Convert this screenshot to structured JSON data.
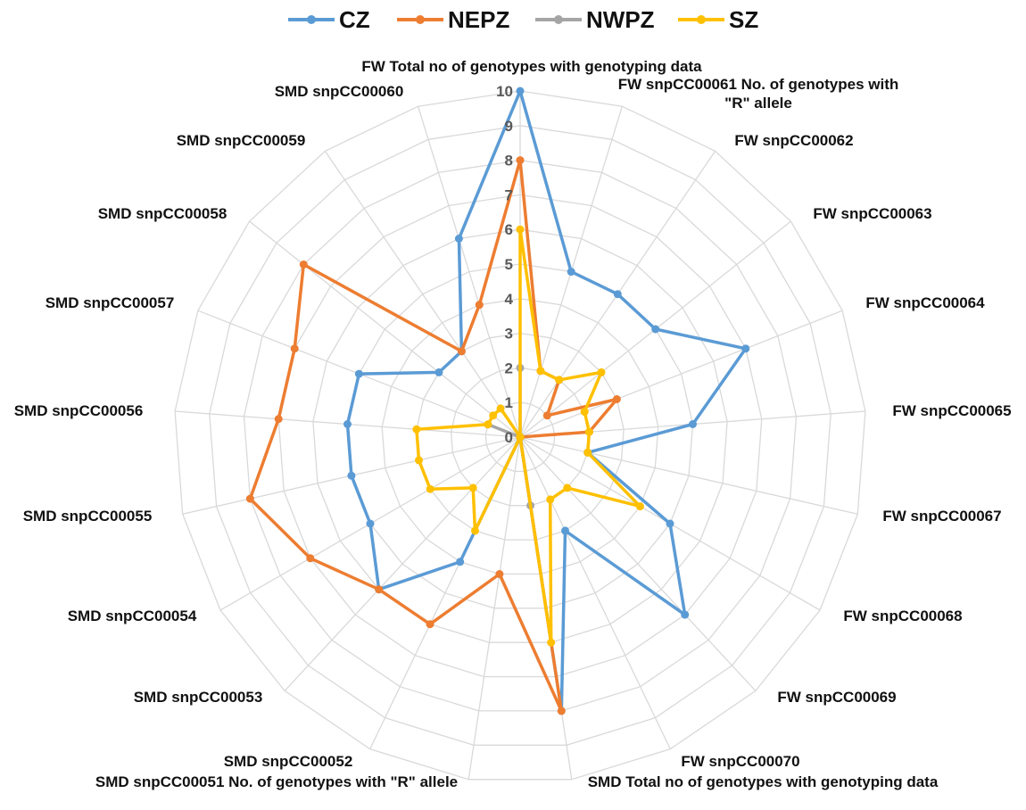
{
  "chart_data": {
    "type": "radar",
    "r_range": [
      0,
      10
    ],
    "tick_labels": [
      "0",
      "1",
      "2",
      "3",
      "4",
      "5",
      "6",
      "7",
      "8",
      "9",
      "10"
    ],
    "grid": true,
    "legend_position": "top",
    "categories": [
      "FW Total no of genotypes with genotyping data",
      "FW snpCC00061 No. of genotypes with \"R\" allele",
      "FW snpCC00062",
      "FW snpCC00063",
      "FW snpCC00064",
      "FW snpCC00065",
      "FW snpCC00067",
      "FW snpCC00068",
      "FW snpCC00069",
      "FW snpCC00070",
      "SMD Total no of genotypes with genotyping data",
      "SMD snpCC00051 No. of genotypes with \"R\" allele",
      "SMD snpCC00052",
      "SMD snpCC00053",
      "SMD snpCC00054",
      "SMD snpCC00055",
      "SMD snpCC00056",
      "SMD snpCC00057",
      "SMD snpCC00058",
      "SMD snpCC00059",
      "SMD snpCC00060"
    ],
    "series": [
      {
        "name": "CZ",
        "color": "#5B9BD5",
        "values": [
          10,
          5,
          5,
          5,
          7,
          5,
          2,
          5,
          7,
          3,
          8,
          0,
          4,
          6,
          5,
          5,
          5,
          5,
          3,
          3,
          6
        ]
      },
      {
        "name": "NEPZ",
        "color": "#ED7D31",
        "values": [
          8,
          2,
          2,
          1,
          3,
          2,
          0,
          0,
          0,
          0,
          8,
          4,
          6,
          6,
          7,
          8,
          7,
          7,
          8,
          3,
          4
        ]
      },
      {
        "name": "NWPZ",
        "color": "#A5A5A5",
        "values": [
          2,
          0,
          0,
          0,
          0,
          0,
          0,
          0,
          0,
          0,
          2,
          0,
          0,
          0,
          0,
          0,
          0,
          1,
          0,
          0,
          0
        ]
      },
      {
        "name": "SZ",
        "color": "#FFC000",
        "values": [
          6,
          2,
          2,
          3,
          2,
          2,
          2,
          4,
          2,
          2,
          6,
          0,
          3,
          2,
          3,
          3,
          3,
          1,
          1,
          1,
          0
        ]
      }
    ]
  },
  "legend": {
    "items": [
      {
        "name": "CZ",
        "color": "#5B9BD5"
      },
      {
        "name": "NEPZ",
        "color": "#ED7D31"
      },
      {
        "name": "NWPZ",
        "color": "#A5A5A5"
      },
      {
        "name": "SZ",
        "color": "#FFC000"
      }
    ]
  }
}
